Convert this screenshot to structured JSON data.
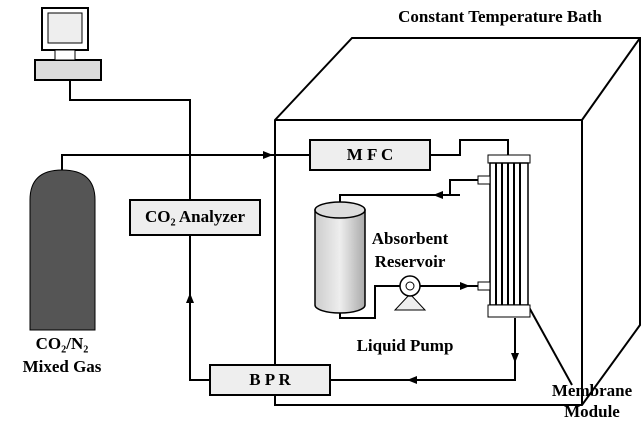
{
  "title": "Constant Temperature Bath",
  "components": {
    "mfc": "M F C",
    "analyzer": "CO₂ Analyzer",
    "reservoir": [
      "Absorbent",
      "Reservoir"
    ],
    "gas": [
      "CO₂/N₂",
      "Mixed Gas"
    ],
    "pump": "Liquid Pump",
    "bpr": "B P R",
    "membrane": [
      "Membrane",
      "Module"
    ]
  }
}
